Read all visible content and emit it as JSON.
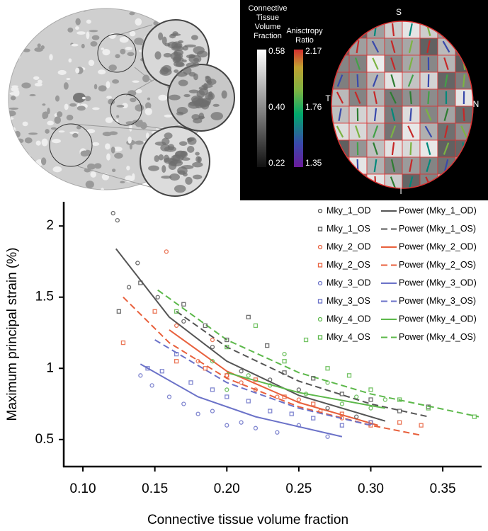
{
  "inset": {
    "gray_bar_label": [
      "Connective",
      "Tissue",
      "Volume",
      "Fraction"
    ],
    "gray_bar_ticks": [
      "0.58",
      "0.40",
      "0.22"
    ],
    "color_bar_label": [
      "Anisctropy",
      "Ratio"
    ],
    "color_bar_ticks": [
      "2.17",
      "1.76",
      "1.35"
    ],
    "orientation": {
      "top": "S",
      "left": "T",
      "right": "N",
      "bottom": "I"
    }
  },
  "chart_data": {
    "type": "scatter",
    "x_label": "Connective tissue volume fraction",
    "y_label": "Maximum principal strain (%)",
    "xlim": [
      0.0867,
      0.377
    ],
    "ylim": [
      0.31,
      2.17
    ],
    "xticks": [
      {
        "value": 0.1,
        "label": "0.10"
      },
      0.15,
      {
        "value": 0.2,
        "label": "0.20"
      },
      0.25,
      {
        "value": 0.3,
        "label": "0.30"
      },
      0.35
    ],
    "yticks": [
      0.5,
      1,
      1.5,
      2
    ],
    "legend": "upper right",
    "series": [
      {
        "name": "Mky_1_OD",
        "color": "#555555",
        "marker": "circle",
        "x": [
          0.121,
          0.124,
          0.132,
          0.138,
          0.152,
          0.17,
          0.19,
          0.21,
          0.23,
          0.25,
          0.27,
          0.29
        ],
        "values": [
          2.09,
          2.04,
          1.57,
          1.74,
          1.5,
          1.33,
          1.15,
          0.98,
          0.92,
          0.85,
          0.72,
          0.66
        ]
      },
      {
        "name": "Mky_1_OS",
        "color": "#555555",
        "marker": "square",
        "x": [
          0.125,
          0.14,
          0.17,
          0.185,
          0.2,
          0.215,
          0.228,
          0.24,
          0.26,
          0.28,
          0.3,
          0.32,
          0.34
        ],
        "values": [
          1.4,
          1.6,
          1.45,
          1.3,
          1.2,
          1.36,
          1.16,
          0.97,
          0.93,
          0.82,
          0.78,
          0.7,
          0.73
        ]
      },
      {
        "name": "Mky_2_OD",
        "color": "#e8603c",
        "marker": "circle",
        "x": [
          0.158,
          0.165,
          0.18,
          0.19,
          0.2,
          0.21,
          0.22,
          0.235,
          0.25,
          0.265,
          0.28,
          0.3
        ],
        "values": [
          1.82,
          1.3,
          1.05,
          1.2,
          0.95,
          0.9,
          0.85,
          0.8,
          0.78,
          0.7,
          0.65,
          0.62
        ]
      },
      {
        "name": "Mky_2_OS",
        "color": "#e8603c",
        "marker": "square",
        "x": [
          0.128,
          0.15,
          0.165,
          0.185,
          0.2,
          0.22,
          0.24,
          0.26,
          0.28,
          0.3,
          0.32,
          0.335
        ],
        "values": [
          1.18,
          1.4,
          1.05,
          1.0,
          0.95,
          0.92,
          0.8,
          0.75,
          0.68,
          0.6,
          0.62,
          0.6
        ]
      },
      {
        "name": "Mky_3_OD",
        "color": "#6b72c8",
        "marker": "circle",
        "x": [
          0.14,
          0.148,
          0.16,
          0.17,
          0.18,
          0.19,
          0.2,
          0.21,
          0.22,
          0.235,
          0.25,
          0.27
        ],
        "values": [
          0.95,
          0.88,
          0.8,
          0.75,
          0.68,
          0.7,
          0.6,
          0.62,
          0.58,
          0.55,
          0.6,
          0.52
        ]
      },
      {
        "name": "Mky_3_OS",
        "color": "#6b72c8",
        "marker": "square",
        "x": [
          0.145,
          0.155,
          0.165,
          0.175,
          0.19,
          0.2,
          0.215,
          0.23,
          0.245,
          0.26,
          0.28,
          0.3
        ],
        "values": [
          1.0,
          0.98,
          1.1,
          0.9,
          0.85,
          0.8,
          0.77,
          0.7,
          0.68,
          0.65,
          0.6,
          0.62
        ]
      },
      {
        "name": "Mky_4_OD",
        "color": "#5cb84a",
        "marker": "circle",
        "x": [
          0.19,
          0.2,
          0.215,
          0.23,
          0.24,
          0.255,
          0.27,
          0.28,
          0.29,
          0.3,
          0.31
        ],
        "values": [
          1.05,
          0.85,
          0.95,
          0.88,
          1.1,
          0.82,
          0.9,
          0.75,
          0.8,
          0.72,
          0.78
        ]
      },
      {
        "name": "Mky_4_OS",
        "color": "#5cb84a",
        "marker": "square",
        "x": [
          0.165,
          0.2,
          0.22,
          0.24,
          0.255,
          0.27,
          0.285,
          0.3,
          0.32,
          0.34,
          0.372
        ],
        "values": [
          1.4,
          1.15,
          1.3,
          1.05,
          1.2,
          1.0,
          0.95,
          0.85,
          0.78,
          0.72,
          0.66
        ]
      }
    ],
    "fits": [
      {
        "name": "Power (Mky_1_OD)",
        "color": "#555555",
        "dashed": false,
        "x": [
          0.123,
          0.16,
          0.2,
          0.25,
          0.31
        ],
        "values": [
          1.84,
          1.36,
          1.05,
          0.81,
          0.63
        ]
      },
      {
        "name": "Power (Mky_1_OS)",
        "color": "#555555",
        "dashed": true,
        "x": [
          0.165,
          0.2,
          0.25,
          0.3,
          0.34
        ],
        "values": [
          1.4,
          1.15,
          0.91,
          0.75,
          0.66
        ]
      },
      {
        "name": "Power (Mky_2_OD)",
        "color": "#e8603c",
        "dashed": false,
        "x": [
          0.16,
          0.2,
          0.25,
          0.305
        ],
        "values": [
          1.27,
          0.98,
          0.76,
          0.6
        ]
      },
      {
        "name": "Power (Mky_2_OS)",
        "color": "#e8603c",
        "dashed": true,
        "x": [
          0.128,
          0.16,
          0.2,
          0.25,
          0.3,
          0.335
        ],
        "values": [
          1.5,
          1.18,
          0.93,
          0.73,
          0.6,
          0.53
        ]
      },
      {
        "name": "Power (Mky_3_OD)",
        "color": "#6b72c8",
        "dashed": false,
        "x": [
          0.14,
          0.18,
          0.22,
          0.28
        ],
        "values": [
          1.03,
          0.8,
          0.66,
          0.52
        ]
      },
      {
        "name": "Power (Mky_3_OS)",
        "color": "#6b72c8",
        "dashed": true,
        "x": [
          0.15,
          0.2,
          0.25,
          0.3
        ],
        "values": [
          1.2,
          0.9,
          0.72,
          0.6
        ]
      },
      {
        "name": "Power (Mky_4_OD)",
        "color": "#5cb84a",
        "dashed": false,
        "x": [
          0.2,
          0.25,
          0.31
        ],
        "values": [
          0.97,
          0.83,
          0.72
        ]
      },
      {
        "name": "Power (Mky_4_OS)",
        "color": "#5cb84a",
        "dashed": true,
        "x": [
          0.152,
          0.2,
          0.25,
          0.3,
          0.375
        ],
        "values": [
          1.55,
          1.2,
          0.97,
          0.82,
          0.66
        ]
      }
    ]
  }
}
